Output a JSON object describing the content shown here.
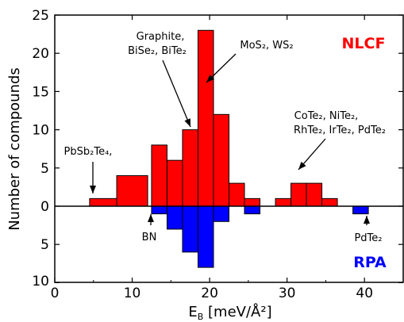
{
  "chart_data": {
    "type": "bar",
    "title": "",
    "xlabel": "E",
    "xlabel_sub": "B",
    "xlabel_units": " [meV/Å²]",
    "ylabel": "Number of compounds",
    "xlim": [
      0,
      45
    ],
    "ylim": [
      -10,
      25
    ],
    "x_ticks": [
      "0",
      "10",
      "20",
      "30",
      "40"
    ],
    "y_ticks_top": [
      "25",
      "20",
      "15",
      "10",
      "5",
      "0"
    ],
    "y_ticks_bottom": [
      "5",
      "10"
    ],
    "bin_width": 2.0,
    "series": [
      {
        "name": "NLCF",
        "color": "#ff0000",
        "direction": "up",
        "bin_starts": [
          4.5,
          8.0,
          12.5,
          14.5,
          16.5,
          18.5,
          20.5,
          22.5,
          24.5,
          28.5,
          30.5,
          32.5,
          34.5
        ],
        "bin_widths": [
          3.5,
          4.0,
          2.0,
          2.0,
          2.0,
          2.0,
          2.0,
          2.0,
          2.0,
          2.0,
          2.0,
          2.0,
          2.0
        ],
        "values": [
          1,
          4,
          8,
          6,
          10,
          23,
          12,
          3,
          1,
          1,
          3,
          3,
          1
        ]
      },
      {
        "name": "RPA",
        "color": "#0000ff",
        "direction": "down",
        "bin_starts": [
          12.5,
          14.5,
          16.5,
          18.5,
          20.5,
          24.5,
          38.5
        ],
        "bin_widths": [
          2.0,
          2.0,
          2.0,
          2.0,
          2.0,
          2.0,
          2.0
        ],
        "values": [
          1,
          3,
          6,
          8,
          2,
          1,
          1
        ]
      }
    ],
    "annotations": [
      {
        "id": "pbsb2te4",
        "text": "PbSb₂Te₄,"
      },
      {
        "id": "graphite1",
        "text": "Graphite,"
      },
      {
        "id": "graphite2",
        "text": "BiSe₂, BiTe₂"
      },
      {
        "id": "mos2",
        "text": "MoS₂, WS₂"
      },
      {
        "id": "cote1",
        "text": "CoTe₂, NiTe₂,"
      },
      {
        "id": "cote2",
        "text": "RhTe₂, IrTe₂, PdTe₂"
      },
      {
        "id": "bn",
        "text": "BN"
      },
      {
        "id": "pdte2",
        "text": "PdTe₂"
      }
    ],
    "method_labels": [
      {
        "text": "NLCF",
        "color": "#ff0000"
      },
      {
        "text": "RPA",
        "color": "#0000ff"
      }
    ]
  }
}
